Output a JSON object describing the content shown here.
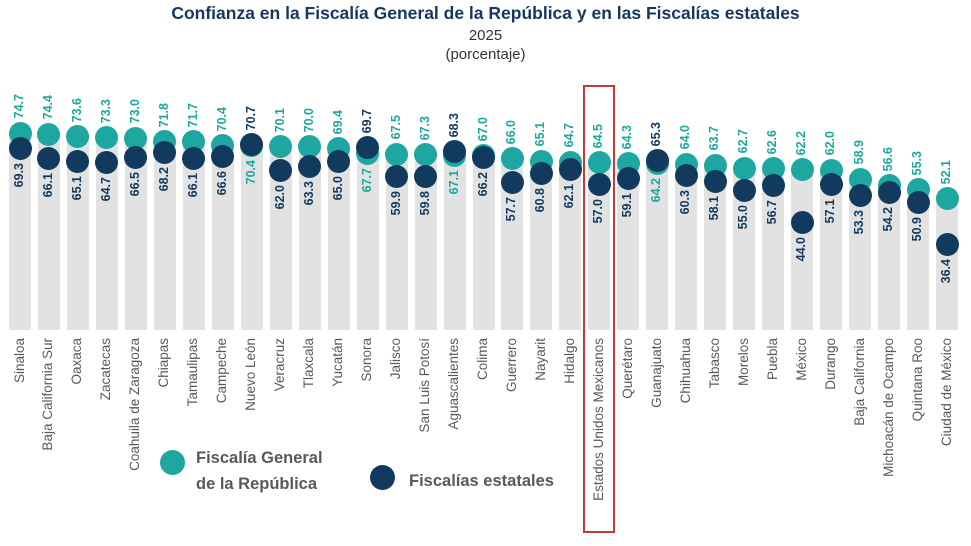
{
  "header": {
    "title": "Confianza en la Fiscalía General de la República y en las Fiscalías estatales",
    "year": "2025",
    "unit": "(porcentaje)"
  },
  "legend": {
    "fgr_line1": "Fiscalía General",
    "fgr_line2": "de la República",
    "estatales": "Fiscalías estatales"
  },
  "colors": {
    "fgr": "#1EA7A0",
    "estatales": "#123A5E",
    "bar": "#E2E2E2",
    "title": "#17375E",
    "axis_label": "#595959",
    "highlight": "#C13A33"
  },
  "chart_data": {
    "type": "scatter",
    "title": "Confianza en la Fiscalía General de la República y en las Fiscalías estatales",
    "subtitle": "2025",
    "unit_label": "(porcentaje)",
    "grid": false,
    "legend_position": "bottom-center",
    "ylim": [
      30,
      80
    ],
    "highlighted_category": "Estados Unidos Mexicanos",
    "highlighted_index": 20,
    "categories": [
      "Sinaloa",
      "Baja California Sur",
      "Oaxaca",
      "Zacatecas",
      "Coahuila de Zaragoza",
      "Chiapas",
      "Tamaulipas",
      "Campeche",
      "Nuevo León",
      "Veracruz",
      "Tlaxcala",
      "Yucatán",
      "Sonora",
      "Jalisco",
      "San Luis Potosí",
      "Aguascalientes",
      "Colima",
      "Guerrero",
      "Nayarit",
      "Hidalgo",
      "Estados Unidos Mexicanos",
      "Querétaro",
      "Guanajuato",
      "Chihuahua",
      "Tabasco",
      "Morelos",
      "Puebla",
      "México",
      "Durango",
      "Baja California",
      "Michoacán de Ocampo",
      "Quintana Roo",
      "Ciudad de México"
    ],
    "series": [
      {
        "name": "Fiscalía General de la República",
        "color": "#1EA7A0",
        "values": [
          74.7,
          74.4,
          73.6,
          73.3,
          73.0,
          71.8,
          71.7,
          70.4,
          70.4,
          70.1,
          70.0,
          69.4,
          67.7,
          67.5,
          67.3,
          67.1,
          67.0,
          66.0,
          65.1,
          64.7,
          64.5,
          64.3,
          64.2,
          64.0,
          63.7,
          62.7,
          62.6,
          62.2,
          62.0,
          58.9,
          56.6,
          55.3,
          52.1
        ]
      },
      {
        "name": "Fiscalías estatales",
        "color": "#123A5E",
        "values": [
          69.3,
          66.1,
          65.1,
          64.7,
          66.5,
          68.2,
          66.1,
          66.6,
          70.7,
          62.0,
          63.3,
          65.0,
          69.7,
          59.9,
          59.8,
          68.3,
          66.2,
          57.7,
          60.8,
          62.1,
          57.0,
          59.1,
          65.3,
          60.3,
          58.1,
          55.0,
          56.7,
          44.0,
          57.1,
          53.3,
          54.2,
          50.9,
          36.4
        ]
      }
    ]
  }
}
